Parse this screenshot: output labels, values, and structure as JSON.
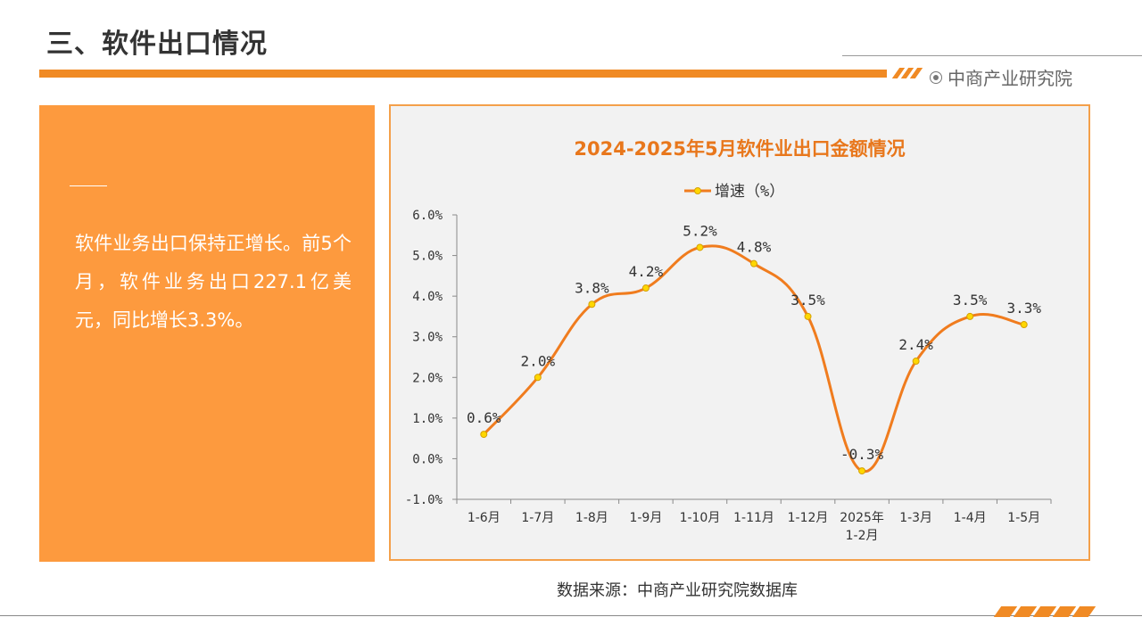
{
  "header": {
    "title": "三、软件出口情况",
    "brand": "中商产业研究院"
  },
  "panel": {
    "text": "软件业务出口保持正增长。前5个月，软件业务出口227.1亿美元，同比增长3.3%。"
  },
  "source": "数据来源：中商产业研究院数据库",
  "colors": {
    "accent": "#f08a24",
    "panel": "#fd9a3e",
    "line": "#f07c1e",
    "marker": "#ffd700",
    "title": "#e8771c"
  },
  "chart_data": {
    "type": "line",
    "title": "2024-2025年5月软件业出口金额情况",
    "categories": [
      "1-6月",
      "1-7月",
      "1-8月",
      "1-9月",
      "1-10月",
      "1-11月",
      "1-12月",
      "2025年\n1-2月",
      "1-3月",
      "1-4月",
      "1-5月"
    ],
    "series": [
      {
        "name": "增速（%）",
        "values": [
          0.6,
          2.0,
          3.8,
          4.2,
          5.2,
          4.8,
          3.5,
          -0.3,
          2.4,
          3.5,
          3.3
        ]
      }
    ],
    "data_labels": [
      "0.6%",
      "2.0%",
      "3.8%",
      "4.2%",
      "5.2%",
      "4.8%",
      "3.5%",
      "-0.3%",
      "2.4%",
      "3.5%",
      "3.3%"
    ],
    "yticks": [
      "6.0%",
      "5.0%",
      "4.0%",
      "3.0%",
      "2.0%",
      "1.0%",
      "0.0%",
      "-1.0%"
    ],
    "ylim": [
      -1.0,
      6.0
    ],
    "legend": "top-center",
    "grid": false,
    "smooth": true
  }
}
